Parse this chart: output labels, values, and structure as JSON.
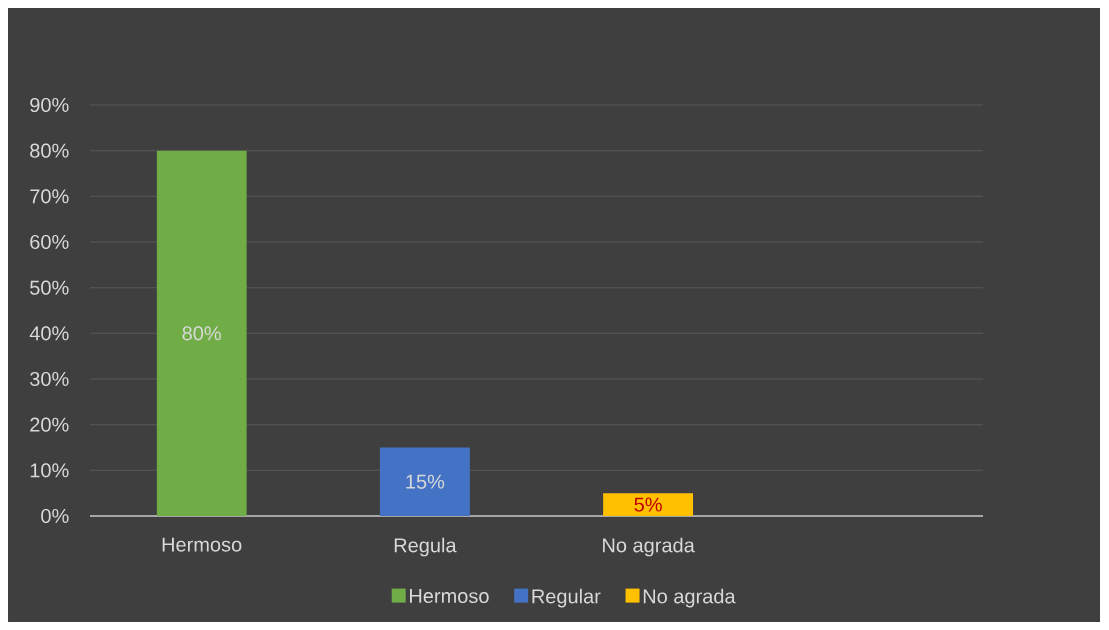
{
  "chart_data": {
    "type": "bar",
    "categories": [
      "Hermoso",
      "Regula",
      "No agrada",
      null
    ],
    "series": [
      {
        "name": "Hermoso",
        "color": "#70ad47",
        "values": [
          80,
          null,
          null,
          null
        ],
        "value_labels": [
          "80%",
          null,
          null,
          null
        ]
      },
      {
        "name": "Regular",
        "color": "#4472c4",
        "values": [
          null,
          15,
          null,
          null
        ],
        "value_labels": [
          null,
          "15%",
          null,
          null
        ]
      },
      {
        "name": "No agrada",
        "color": "#ffc000",
        "values": [
          null,
          null,
          5,
          null
        ],
        "value_labels": [
          null,
          null,
          "5%",
          null
        ]
      }
    ],
    "ylim": [
      0,
      90
    ],
    "yticks": [
      {
        "value": 0,
        "label": "0%"
      },
      {
        "value": 10,
        "label": "10%"
      },
      {
        "value": 20,
        "label": "20%"
      },
      {
        "value": 30,
        "label": "30%"
      },
      {
        "value": 40,
        "label": "40%"
      },
      {
        "value": 50,
        "label": "50%"
      },
      {
        "value": 60,
        "label": "60%"
      },
      {
        "value": 70,
        "label": "70%"
      },
      {
        "value": 80,
        "label": "80%"
      },
      {
        "value": 90,
        "label": "90%"
      }
    ],
    "grid": "y",
    "legend": "bottom"
  }
}
